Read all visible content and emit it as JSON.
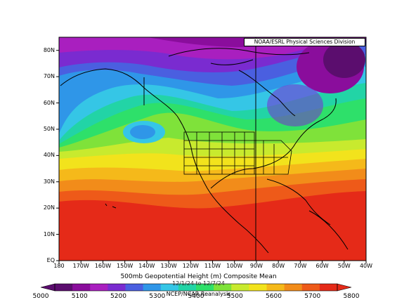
{
  "credit": "NOAA/ESRL Physical Sciences Division",
  "title": "500mb Geopotential Height (m) Composite Mean",
  "date_range": "12/1/24 to 12/7/24",
  "source": "NCEP/NCAR Reanalysis",
  "lat_labels": [
    "80N",
    "70N",
    "60N",
    "50N",
    "40N",
    "30N",
    "20N",
    "10N",
    "EQ"
  ],
  "lat_values": [
    80,
    70,
    60,
    50,
    40,
    30,
    20,
    10,
    0
  ],
  "lon_labels": [
    "180",
    "170W",
    "160W",
    "150W",
    "140W",
    "130W",
    "120W",
    "110W",
    "100W",
    "90W",
    "80W",
    "70W",
    "60W",
    "50W",
    "40W"
  ],
  "colorbar": {
    "labels": [
      "5000",
      "5100",
      "5200",
      "5300",
      "5400",
      "5500",
      "5600",
      "5700",
      "5800"
    ],
    "colors": [
      "#5b0d6e",
      "#8a0d9c",
      "#a91fbf",
      "#7a2bd0",
      "#4a5fe0",
      "#2f96e8",
      "#35c6e6",
      "#22d4a6",
      "#2ee06a",
      "#7fe23a",
      "#c8ea2e",
      "#f2e31c",
      "#f5b91a",
      "#f28c1a",
      "#ee5a19",
      "#e52a18"
    ]
  },
  "map": {
    "extent": {
      "lon": [
        -180,
        -40
      ],
      "lat": [
        0,
        85
      ]
    },
    "center_meridian": "90W",
    "colors": {
      "deep_purple": "#5b0d6e",
      "purple": "#8a0d9c",
      "violet": "#a91fbf",
      "blue_violet": "#7a2bd0",
      "blue": "#4a5fe0",
      "sky_blue": "#2f96e8",
      "cyan": "#35c6e6",
      "teal": "#22d4a6",
      "green": "#2ee06a",
      "light_green": "#7fe23a",
      "yellow_green": "#c8ea2e",
      "yellow": "#f2e31c",
      "orange_yellow": "#f5b91a",
      "orange": "#f28c1a",
      "red_orange": "#ee5a19",
      "red": "#e52a18"
    }
  }
}
